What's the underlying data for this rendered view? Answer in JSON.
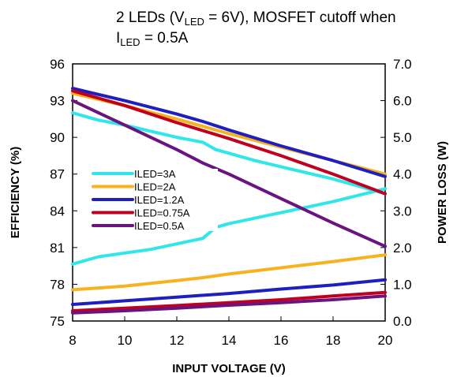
{
  "colors": {
    "ILED=3A": "#2fe6ea",
    "ILED=2A": "#f7b21d",
    "ILED=1.2A": "#1f1fbf",
    "ILED=0.75A": "#c0001f",
    "ILED=0.5A": "#6a1480"
  },
  "chart_data": {
    "type": "line",
    "title_parts": {
      "line1_a": "2 LEDs (V",
      "line1_sub": "LED",
      "line1_b": " = 6V), MOSFET cutoff when",
      "line2_a": "I",
      "line2_sub": "LED",
      "line2_b": " = 0.5A"
    },
    "xlabel": "INPUT VOLTAGE (V)",
    "ylabel_left": "EFFICIENCY (%)",
    "ylabel_right": "POWER LOSS (W)",
    "xlim": [
      8,
      20
    ],
    "ylim_left": [
      75,
      96
    ],
    "ylim_right": [
      0,
      7
    ],
    "x_ticks": [
      "8",
      "10",
      "12",
      "14",
      "16",
      "18",
      "20"
    ],
    "y_left_ticks": [
      "75",
      "78",
      "81",
      "84",
      "87",
      "90",
      "93",
      "96"
    ],
    "y_right_ticks": [
      "0.0",
      "1.0",
      "2.0",
      "3.0",
      "4.0",
      "5.0",
      "6.0",
      "7.0"
    ],
    "legend_placement": "center-left",
    "legend": [
      "ILED=3A",
      "ILED=2A",
      "ILED=1.2A",
      "ILED=0.75A",
      "ILED=0.5A"
    ],
    "efficiency_series": [
      {
        "name": "ILED=3A",
        "x": [
          8,
          9,
          10,
          11,
          12,
          13,
          13.5,
          14,
          15,
          16,
          17,
          18,
          19,
          20
        ],
        "y": [
          92.0,
          91.4,
          91.0,
          90.5,
          90.0,
          89.6,
          89.0,
          88.7,
          88.1,
          87.6,
          87.1,
          86.6,
          86.0,
          85.4
        ]
      },
      {
        "name": "ILED=2A",
        "x": [
          8,
          10,
          12,
          14,
          16,
          18,
          20
        ],
        "y": [
          93.6,
          92.6,
          91.5,
          90.3,
          89.2,
          88.1,
          87.0
        ]
      },
      {
        "name": "ILED=1.2A",
        "x": [
          8,
          10,
          12,
          13,
          14,
          16,
          18,
          20
        ],
        "y": [
          94.0,
          93.0,
          91.9,
          91.3,
          90.6,
          89.3,
          88.1,
          86.8
        ]
      },
      {
        "name": "ILED=0.75A",
        "x": [
          8,
          10,
          12,
          14,
          16,
          18,
          20
        ],
        "y": [
          93.8,
          92.6,
          91.2,
          89.9,
          88.5,
          87.0,
          85.4
        ]
      },
      {
        "name": "ILED=0.5A",
        "x": [
          8,
          10,
          12,
          13,
          14,
          16,
          18,
          20
        ],
        "y": [
          93.0,
          91.0,
          89.0,
          87.9,
          87.0,
          85.0,
          83.0,
          81.1
        ]
      }
    ],
    "power_loss_series": [
      {
        "name": "ILED=3A",
        "x": [
          8,
          9,
          10,
          11,
          12,
          13,
          13.5,
          14,
          16,
          18,
          20
        ],
        "y": [
          1.55,
          1.75,
          1.85,
          1.95,
          2.1,
          2.25,
          2.55,
          2.65,
          2.95,
          3.25,
          3.6
        ]
      },
      {
        "name": "ILED=2A",
        "x": [
          8,
          10,
          12,
          13,
          14,
          16,
          18,
          20
        ],
        "y": [
          0.85,
          0.95,
          1.1,
          1.18,
          1.28,
          1.45,
          1.62,
          1.8
        ]
      },
      {
        "name": "ILED=1.2A",
        "x": [
          8,
          10,
          12,
          14,
          16,
          18,
          20
        ],
        "y": [
          0.45,
          0.55,
          0.65,
          0.75,
          0.87,
          0.98,
          1.12
        ]
      },
      {
        "name": "ILED=0.75A",
        "x": [
          8,
          10,
          12,
          14,
          16,
          18,
          20
        ],
        "y": [
          0.28,
          0.35,
          0.42,
          0.5,
          0.58,
          0.68,
          0.78
        ]
      },
      {
        "name": "ILED=0.5A",
        "x": [
          8,
          10,
          12,
          14,
          16,
          18,
          20
        ],
        "y": [
          0.22,
          0.28,
          0.35,
          0.43,
          0.5,
          0.58,
          0.68
        ]
      }
    ]
  }
}
